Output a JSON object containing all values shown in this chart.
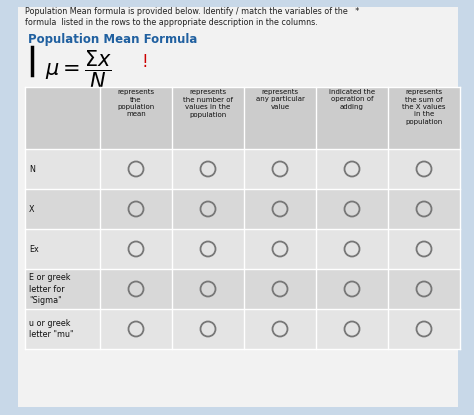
{
  "title_line1": "Population Mean formula is provided below. Identify / match the variables of the   *",
  "title_line2": "formula  listed in the rows to the appropriate description in the columns.",
  "section_title": "Population Mean Formula",
  "bg_color": "#c8d8e8",
  "card_color": "#f0f0f0",
  "col_headers": [
    "represents\nthe\npopulation\nmean",
    "represents\nthe number of\nvalues in the\npopulation",
    "represents\nany particular\nvalue",
    "indicated the\noperation of\nadding",
    "represents\nthe sum of\nthe X values\nin the\npopulation"
  ],
  "row_labels": [
    "N",
    "X",
    "Ex",
    "E or greek\nletter for\n\"Sigma\"",
    "u or greek\nletter \"mu\""
  ],
  "num_cols": 5,
  "num_rows": 5,
  "circle_edgecolor": "#777777",
  "row_colors": [
    "#e4e4e4",
    "#d8d8d8",
    "#e4e4e4",
    "#d8d8d8",
    "#e4e4e4"
  ],
  "header_bg": "#cccccc",
  "label_col_bg": "#e0e0e0"
}
